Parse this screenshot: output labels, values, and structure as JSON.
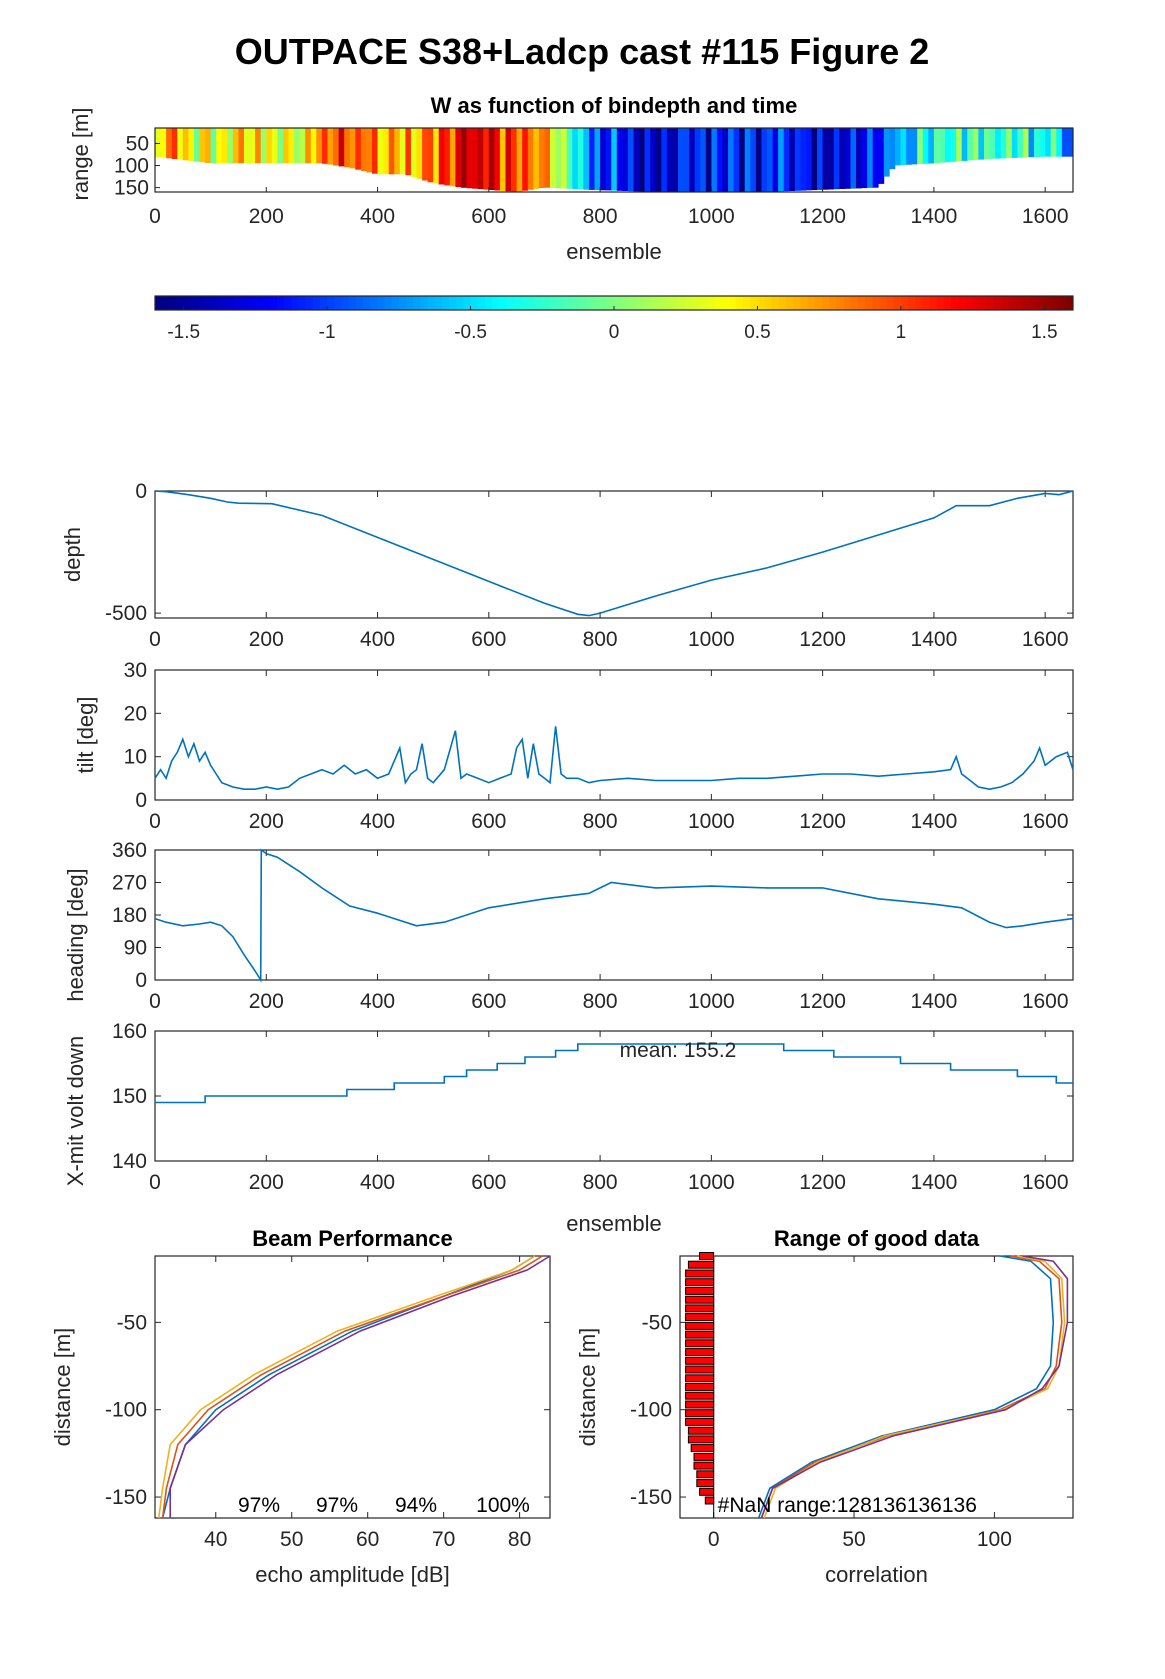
{
  "figure_title": "OUTPACE S38+Ladcp cast #115 Figure 2",
  "colors": {
    "line": "#0072BD",
    "beams": [
      "#0072BD",
      "#D95319",
      "#EDB120",
      "#7E2F8E"
    ],
    "bar_fill": "#FF0000",
    "axis": "#262626"
  },
  "chart_data": [
    {
      "id": "wmap",
      "type": "heatmap",
      "title": "W as function of bindepth and time",
      "xlabel": "ensemble",
      "ylabel": "range [m]",
      "xlim": [
        0,
        1650
      ],
      "ylim": [
        15,
        160
      ],
      "y_reversed": true,
      "xticks": [
        0,
        200,
        400,
        600,
        800,
        1000,
        1200,
        1400,
        1600
      ],
      "yticks": [
        50,
        100,
        150
      ],
      "value_profile": {
        "ensemble": [
          0,
          40,
          80,
          150,
          250,
          300,
          400,
          500,
          560,
          620,
          700,
          740,
          780,
          830,
          900,
          1000,
          1100,
          1200,
          1300,
          1330,
          1400,
          1500,
          1560,
          1620,
          1650
        ],
        "w": [
          0.3,
          0.6,
          0.2,
          0.4,
          0.1,
          1.0,
          0.8,
          0.6,
          1.3,
          1.1,
          0.5,
          0.0,
          -0.6,
          -1.1,
          -1.2,
          -1.3,
          -1.2,
          -1.1,
          -1.0,
          -0.6,
          -0.3,
          -0.4,
          -0.2,
          -0.5,
          -0.6
        ]
      },
      "bottom_of_good_data_m": {
        "ensemble": [
          0,
          100,
          200,
          300,
          350,
          400,
          450,
          500,
          550,
          600,
          650,
          700,
          780,
          900,
          1100,
          1300,
          1330,
          1400,
          1500,
          1600,
          1650
        ],
        "range": [
          80,
          95,
          95,
          95,
          105,
          120,
          120,
          140,
          150,
          155,
          160,
          150,
          155,
          160,
          160,
          150,
          100,
          95,
          85,
          80,
          80
        ]
      }
    },
    {
      "id": "colorbar",
      "type": "heatmap",
      "colormap": "jet",
      "clim": [
        -1.6,
        1.6
      ],
      "ticks": [
        -1.5,
        -1,
        -0.5,
        0,
        0.5,
        1,
        1.5
      ],
      "tick_labels": [
        "-1.5",
        "-1",
        "-0.5",
        "0",
        "0.5",
        "1",
        "1.5"
      ]
    },
    {
      "id": "depth",
      "type": "line",
      "ylabel": "depth",
      "xlim": [
        0,
        1650
      ],
      "ylim": [
        -520,
        0
      ],
      "xticks": [
        0,
        200,
        400,
        600,
        800,
        1000,
        1200,
        1400,
        1600
      ],
      "yticks": [
        -500,
        0
      ],
      "x": [
        0,
        20,
        60,
        100,
        130,
        150,
        210,
        300,
        400,
        500,
        600,
        700,
        760,
        780,
        800,
        900,
        1000,
        1100,
        1200,
        1300,
        1400,
        1440,
        1500,
        1550,
        1600,
        1625,
        1650
      ],
      "y": [
        0,
        -3,
        -15,
        -30,
        -45,
        -50,
        -52,
        -100,
        -190,
        -280,
        -370,
        -460,
        -505,
        -510,
        -500,
        -430,
        -365,
        -315,
        -250,
        -180,
        -110,
        -60,
        -60,
        -30,
        -10,
        -15,
        0
      ]
    },
    {
      "id": "tilt",
      "type": "line",
      "ylabel": "tilt [deg]",
      "xlim": [
        0,
        1650
      ],
      "ylim": [
        0,
        30
      ],
      "xticks": [
        0,
        200,
        400,
        600,
        800,
        1000,
        1200,
        1400,
        1600
      ],
      "yticks": [
        0,
        10,
        20,
        30
      ],
      "x": [
        0,
        10,
        20,
        30,
        40,
        50,
        60,
        70,
        80,
        90,
        100,
        110,
        120,
        140,
        160,
        180,
        200,
        220,
        240,
        260,
        280,
        300,
        320,
        340,
        360,
        380,
        400,
        420,
        440,
        450,
        460,
        470,
        480,
        490,
        500,
        520,
        540,
        550,
        560,
        580,
        600,
        620,
        640,
        650,
        660,
        670,
        680,
        690,
        700,
        710,
        720,
        730,
        740,
        760,
        780,
        800,
        850,
        900,
        950,
        1000,
        1050,
        1100,
        1150,
        1200,
        1250,
        1300,
        1350,
        1400,
        1430,
        1440,
        1450,
        1460,
        1480,
        1500,
        1520,
        1540,
        1560,
        1580,
        1590,
        1600,
        1620,
        1640,
        1650
      ],
      "y": [
        5,
        7,
        5,
        9,
        11,
        14,
        10,
        13,
        9,
        11,
        8,
        6,
        4,
        3,
        2.5,
        2.5,
        3,
        2.5,
        3,
        5,
        6,
        7,
        6,
        8,
        6,
        7,
        5,
        6,
        12,
        4,
        6,
        7,
        13,
        5,
        4,
        7,
        16,
        5,
        6,
        5,
        4,
        5,
        6,
        12,
        14,
        5,
        13,
        6,
        5,
        4,
        17,
        6,
        5,
        5,
        4,
        4.5,
        5,
        4.5,
        4.5,
        4.5,
        5,
        5,
        5.5,
        6,
        6,
        5.5,
        6,
        6.5,
        7,
        10,
        6,
        5,
        3,
        2.5,
        3,
        4,
        6,
        9,
        12,
        8,
        10,
        11,
        7
      ]
    },
    {
      "id": "heading",
      "type": "line",
      "ylabel": "heading [deg]",
      "xlim": [
        0,
        1650
      ],
      "ylim": [
        0,
        360
      ],
      "xticks": [
        0,
        200,
        400,
        600,
        800,
        1000,
        1200,
        1400,
        1600
      ],
      "yticks": [
        0,
        90,
        180,
        270,
        360
      ],
      "x": [
        0,
        20,
        50,
        80,
        100,
        120,
        140,
        160,
        180,
        190,
        191,
        200,
        220,
        260,
        300,
        350,
        400,
        470,
        520,
        600,
        700,
        780,
        820,
        900,
        1000,
        1100,
        1200,
        1300,
        1400,
        1450,
        1500,
        1530,
        1560,
        1600,
        1650
      ],
      "y": [
        170,
        160,
        150,
        155,
        160,
        150,
        120,
        70,
        25,
        0,
        360,
        350,
        340,
        300,
        255,
        205,
        185,
        150,
        160,
        200,
        225,
        240,
        270,
        255,
        260,
        255,
        255,
        225,
        210,
        200,
        160,
        145,
        150,
        160,
        170
      ]
    },
    {
      "id": "volt",
      "type": "line",
      "ylabel": "X-mit volt down",
      "xlabel": "ensemble",
      "annotation": "mean: 155.2",
      "xlim": [
        0,
        1650
      ],
      "ylim": [
        140,
        160
      ],
      "xticks": [
        0,
        200,
        400,
        600,
        800,
        1000,
        1200,
        1400,
        1600
      ],
      "yticks": [
        140,
        150,
        160
      ],
      "step_x": [
        0,
        90,
        345,
        430,
        520,
        560,
        615,
        665,
        720,
        760,
        1120,
        1130,
        1220,
        1340,
        1430,
        1550,
        1620,
        1650
      ],
      "step_y": [
        149,
        150,
        151,
        152,
        153,
        154,
        155,
        156,
        157,
        158,
        158,
        157,
        156,
        155,
        154,
        153,
        152,
        152
      ]
    },
    {
      "id": "beam",
      "type": "line",
      "title": "Beam Performance",
      "xlabel": "echo amplitude [dB]",
      "ylabel": "distance [m]",
      "xlim": [
        32,
        84
      ],
      "ylim": [
        -162,
        -12
      ],
      "xticks": [
        40,
        50,
        60,
        70,
        80
      ],
      "yticks": [
        -150,
        -100,
        -50
      ],
      "percent_labels": [
        "97%",
        "97%",
        "94%",
        "100%"
      ],
      "series": [
        {
          "x": [
            33,
            34,
            36,
            40,
            47,
            58,
            70,
            79,
            82
          ],
          "y": [
            -162,
            -145,
            -120,
            -100,
            -80,
            -55,
            -35,
            -20,
            -12
          ]
        },
        {
          "x": [
            33,
            33.5,
            35,
            39,
            46,
            57,
            70,
            80,
            83
          ],
          "y": [
            -162,
            -145,
            -120,
            -100,
            -80,
            -55,
            -35,
            -20,
            -12
          ]
        },
        {
          "x": [
            32.5,
            33,
            34,
            38,
            45,
            56,
            69,
            79,
            82
          ],
          "y": [
            -162,
            -145,
            -120,
            -100,
            -80,
            -55,
            -35,
            -20,
            -12
          ]
        },
        {
          "x": [
            34,
            34,
            36,
            41,
            48,
            59,
            71,
            81,
            84
          ],
          "y": [
            -162,
            -145,
            -120,
            -100,
            -80,
            -55,
            -35,
            -20,
            -12
          ]
        }
      ]
    },
    {
      "id": "corr",
      "type": "line",
      "title": "Range of good data",
      "xlabel": "correlation",
      "ylabel": "distance [m]",
      "annotation": "#NaN range:128136136136",
      "xlim": [
        -12,
        128
      ],
      "ylim": [
        -162,
        -12
      ],
      "xticks": [
        0,
        50,
        100
      ],
      "yticks": [
        -150,
        -100,
        -50
      ],
      "bars": {
        "distance": [
          -12,
          -17,
          -22,
          -27,
          -32,
          -37,
          -42,
          -47,
          -52,
          -57,
          -62,
          -67,
          -72,
          -77,
          -82,
          -87,
          -92,
          -97,
          -102,
          -107,
          -112,
          -117,
          -122,
          -127,
          -132,
          -137,
          -142,
          -147,
          -152
        ],
        "value": [
          -5,
          -9,
          -10,
          -10,
          -10,
          -10,
          -10,
          -10,
          -10,
          -10,
          -10,
          -10,
          -10,
          -10,
          -10,
          -10,
          -10,
          -10,
          -10,
          -10,
          -9,
          -9,
          -8,
          -7,
          -7,
          -6,
          -6,
          -5,
          -3
        ]
      },
      "series": [
        {
          "x": [
            16,
            20,
            35,
            60,
            100,
            115,
            120,
            121,
            120,
            113,
            102
          ],
          "y": [
            -162,
            -145,
            -130,
            -115,
            -100,
            -88,
            -75,
            -50,
            -25,
            -15,
            -12
          ]
        },
        {
          "x": [
            17,
            21,
            36,
            62,
            102,
            118,
            122,
            124,
            123,
            116,
            106
          ],
          "y": [
            -162,
            -145,
            -130,
            -115,
            -100,
            -88,
            -75,
            -50,
            -25,
            -15,
            -12
          ]
        },
        {
          "x": [
            18,
            22,
            37,
            61,
            103,
            119,
            123,
            125,
            124,
            118,
            108
          ],
          "y": [
            -162,
            -145,
            -130,
            -115,
            -100,
            -88,
            -75,
            -50,
            -25,
            -15,
            -12
          ]
        },
        {
          "x": [
            17,
            21,
            38,
            64,
            104,
            117,
            123,
            126,
            126,
            121,
            110
          ],
          "y": [
            -162,
            -145,
            -130,
            -115,
            -100,
            -88,
            -75,
            -50,
            -25,
            -15,
            -12
          ]
        }
      ]
    }
  ]
}
